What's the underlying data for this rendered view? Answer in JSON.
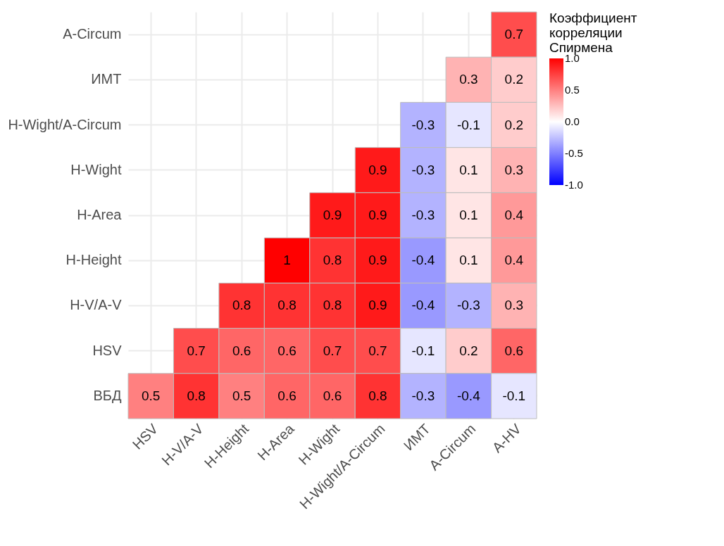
{
  "chart_data": {
    "type": "heatmap",
    "legend_title": "Коэффициент\nкорреляции\nСпирмена",
    "categories": [
      "HSV",
      "H-V/A-V",
      "H-Height",
      "H-Area",
      "H-Wight",
      "H-Wight/A-Circum",
      "ИМТ",
      "A-Circum",
      "A-HV"
    ],
    "y_categories": [
      "A-Circum",
      "ИМТ",
      "H-Wight/A-Circum",
      "H-Wight",
      "H-Area",
      "H-Height",
      "H-V/A-V",
      "HSV",
      "ВБД"
    ],
    "cells": [
      [
        null,
        null,
        null,
        null,
        null,
        null,
        null,
        null,
        0.7
      ],
      [
        null,
        null,
        null,
        null,
        null,
        null,
        null,
        0.3,
        0.2
      ],
      [
        null,
        null,
        null,
        null,
        null,
        null,
        -0.3,
        -0.1,
        0.2
      ],
      [
        null,
        null,
        null,
        null,
        null,
        0.9,
        -0.3,
        0.1,
        0.3
      ],
      [
        null,
        null,
        null,
        null,
        0.9,
        0.9,
        -0.3,
        0.1,
        0.4
      ],
      [
        null,
        null,
        null,
        1,
        0.8,
        0.9,
        -0.4,
        0.1,
        0.4
      ],
      [
        null,
        null,
        0.8,
        0.8,
        0.8,
        0.9,
        -0.4,
        -0.3,
        0.3
      ],
      [
        null,
        0.7,
        0.6,
        0.6,
        0.7,
        0.7,
        -0.1,
        0.2,
        0.6
      ],
      [
        0.5,
        0.8,
        0.5,
        0.6,
        0.6,
        0.8,
        -0.3,
        -0.4,
        -0.1
      ]
    ],
    "clim": [
      -1,
      1
    ],
    "cticks": [
      {
        "value": 1,
        "label": "1.0"
      },
      0.5,
      {
        "value": 0,
        "label": "0.0"
      },
      -0.5,
      {
        "value": -1,
        "label": "-1.0"
      }
    ],
    "data_labels": true,
    "grid": true
  }
}
